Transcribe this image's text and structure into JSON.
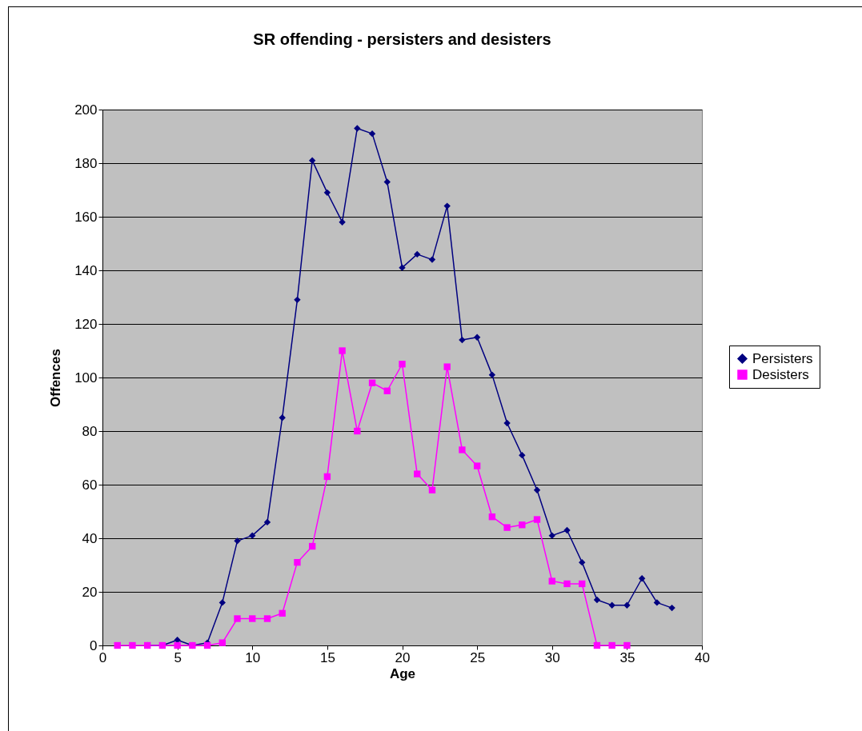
{
  "chart_data": {
    "type": "line",
    "title": "SR offending - persisters and desisters",
    "xlabel": "Age",
    "ylabel": "Offences",
    "x": [
      1,
      2,
      3,
      4,
      5,
      6,
      7,
      8,
      9,
      10,
      11,
      12,
      13,
      14,
      15,
      16,
      17,
      18,
      19,
      20,
      21,
      22,
      23,
      24,
      25,
      26,
      27,
      28,
      29,
      30,
      31,
      32,
      33,
      34,
      35
    ],
    "series": [
      {
        "name": "Persisters",
        "color": "#000080",
        "marker": "diamond",
        "x": [
          3,
          4,
          5,
          6,
          7,
          8,
          9,
          10,
          11,
          12,
          13,
          14,
          15,
          16,
          17,
          18,
          19,
          20,
          21,
          22,
          23,
          24,
          25,
          26,
          27,
          28,
          29,
          30,
          31,
          32,
          33,
          34,
          35,
          36,
          37,
          38
        ],
        "values": [
          0,
          0,
          2,
          0,
          1,
          16,
          39,
          41,
          46,
          85,
          129,
          181,
          169,
          158,
          193,
          191,
          173,
          141,
          146,
          144,
          164,
          114,
          115,
          101,
          83,
          71,
          58,
          41,
          43,
          31,
          17,
          15,
          15,
          25,
          16,
          14
        ]
      },
      {
        "name": "Desisters",
        "color": "#ff00ff",
        "marker": "square",
        "values": [
          0,
          0,
          0,
          0,
          0,
          0,
          0,
          1,
          10,
          10,
          10,
          12,
          31,
          37,
          63,
          110,
          80,
          98,
          95,
          105,
          64,
          58,
          104,
          73,
          67,
          48,
          44,
          45,
          47,
          24,
          23,
          23,
          0,
          0,
          0
        ]
      }
    ],
    "xlim": [
      0,
      40
    ],
    "xticks": [
      0,
      5,
      10,
      15,
      20,
      25,
      30,
      35,
      40
    ],
    "ylim": [
      0,
      200
    ],
    "yticks": [
      0,
      20,
      40,
      60,
      80,
      100,
      120,
      140,
      160,
      180,
      200
    ],
    "grid": "y",
    "legend": "right",
    "line_style": "solid"
  }
}
